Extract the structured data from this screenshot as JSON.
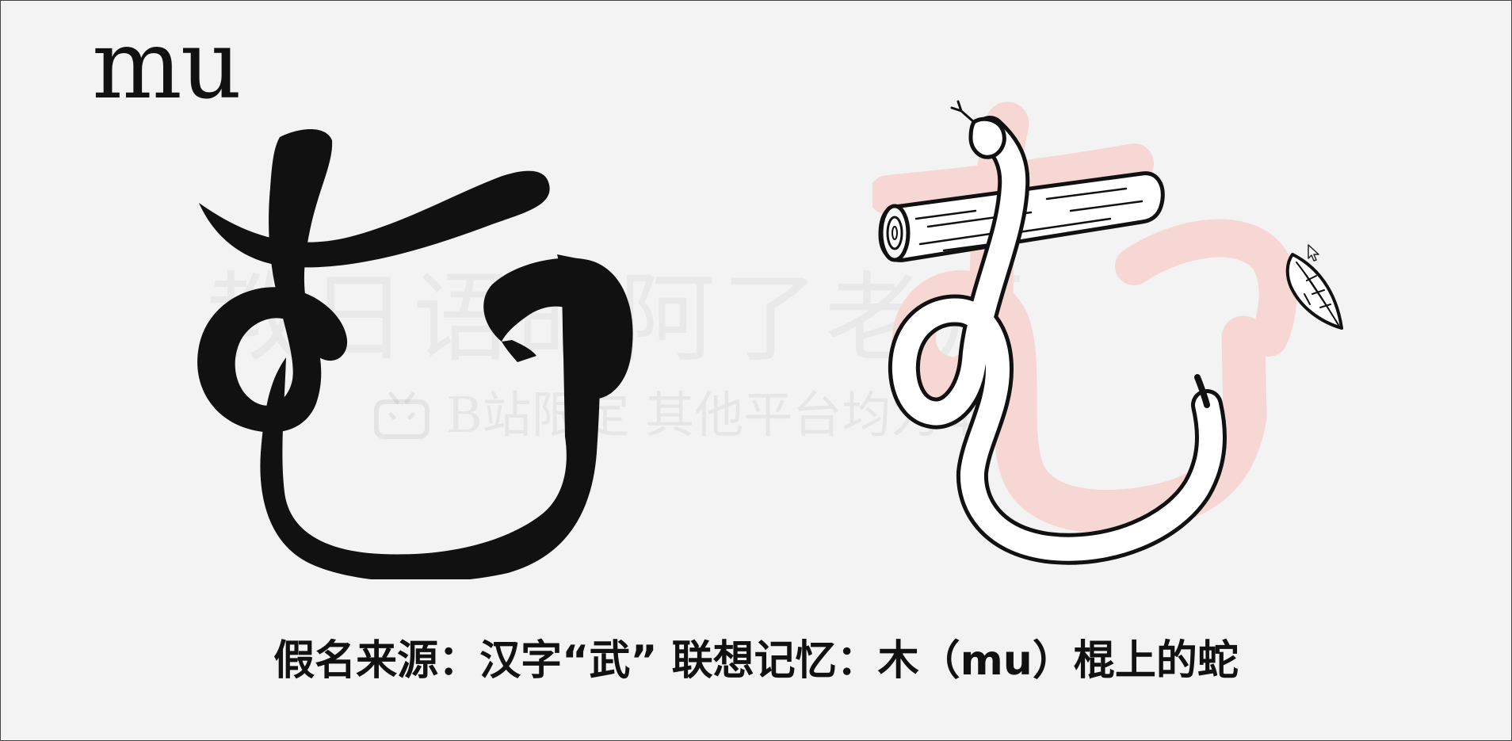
{
  "romaji": "mu",
  "kana": {
    "character": "む",
    "name": "hiragana-mu"
  },
  "watermark": {
    "line1": "教日语的阿了老师",
    "line2": "B站限定 其他平台均为本人",
    "logo_icon": "bilibili-tv-icon"
  },
  "caption": {
    "text": "假名来源：汉字“武” 联想记忆：木（mu）棍上的蛇"
  },
  "illustration": {
    "elements": [
      "wooden-stick",
      "white-snake",
      "leaf",
      "pink-kana-shadow"
    ],
    "colors": {
      "shadow": "#f6d7d4",
      "snake": "#ffffff",
      "outline": "#111111"
    }
  },
  "cursor_icon": "mouse-pointer-icon"
}
